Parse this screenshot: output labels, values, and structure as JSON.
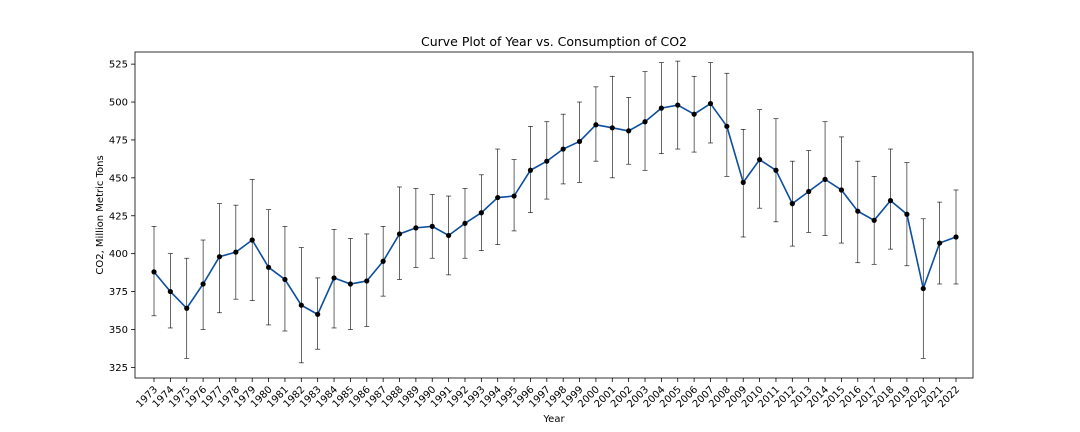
{
  "chart_data": {
    "type": "line",
    "title": "Curve Plot of Year vs. Consumption of CO2",
    "xlabel": "Year",
    "ylabel": "CO2, Million Metric Tons",
    "x": [
      "1973",
      "1974",
      "1975",
      "1976",
      "1977",
      "1978",
      "1979",
      "1980",
      "1981",
      "1982",
      "1983",
      "1984",
      "1985",
      "1986",
      "1987",
      "1988",
      "1989",
      "1990",
      "1991",
      "1992",
      "1993",
      "1994",
      "1995",
      "1996",
      "1997",
      "1998",
      "1999",
      "2000",
      "2001",
      "2002",
      "2003",
      "2004",
      "2005",
      "2006",
      "2007",
      "2008",
      "2009",
      "2010",
      "2011",
      "2012",
      "2013",
      "2014",
      "2015",
      "2016",
      "2017",
      "2018",
      "2019",
      "2020",
      "2021",
      "2022"
    ],
    "values": [
      388,
      375,
      364,
      380,
      398,
      401,
      409,
      391,
      383,
      366,
      360,
      384,
      380,
      382,
      395,
      413,
      417,
      418,
      412,
      420,
      427,
      437,
      438,
      455,
      461,
      469,
      474,
      485,
      483,
      481,
      487,
      496,
      498,
      492,
      499,
      484,
      447,
      462,
      455,
      433,
      441,
      449,
      442,
      428,
      422,
      435,
      426,
      377,
      407,
      411
    ],
    "error_low": [
      359,
      351,
      331,
      350,
      361,
      370,
      369,
      353,
      349,
      328,
      337,
      351,
      350,
      352,
      372,
      383,
      391,
      397,
      386,
      397,
      402,
      406,
      415,
      427,
      436,
      446,
      447,
      461,
      450,
      459,
      455,
      466,
      469,
      467,
      473,
      451,
      411,
      430,
      421,
      405,
      414,
      412,
      407,
      394,
      393,
      403,
      392,
      331,
      380,
      380
    ],
    "error_high": [
      418,
      400,
      397,
      409,
      433,
      432,
      449,
      429,
      418,
      404,
      384,
      416,
      410,
      413,
      418,
      444,
      443,
      439,
      438,
      443,
      452,
      469,
      462,
      484,
      487,
      492,
      500,
      510,
      517,
      503,
      520,
      526,
      527,
      517,
      526,
      519,
      482,
      495,
      489,
      461,
      468,
      487,
      477,
      461,
      451,
      469,
      460,
      423,
      434,
      442
    ],
    "yticks": [
      325,
      350,
      375,
      400,
      425,
      450,
      475,
      500,
      525
    ],
    "ylim": [
      318,
      533
    ],
    "line_color": "#0d4e9e",
    "marker_color": "#000000",
    "errorbar_color": "#000000",
    "grid": false,
    "legend": "none"
  }
}
